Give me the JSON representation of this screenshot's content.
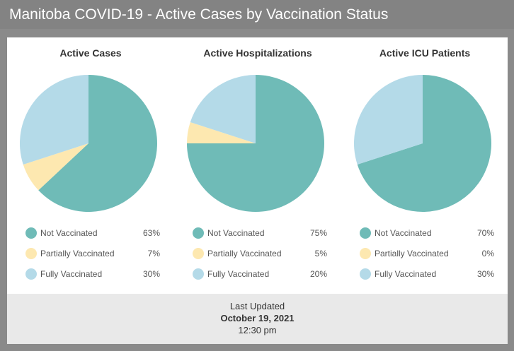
{
  "header": {
    "title": "Manitoba COVID-19 - Active Cases by Vaccination Status"
  },
  "colors": {
    "not_vaccinated": "#6fbbb7",
    "partially_vaccinated": "#fde8b0",
    "fully_vaccinated": "#b4dae8"
  },
  "chart_data": [
    {
      "type": "pie",
      "title": "Active Cases",
      "categories": [
        "Not Vaccinated",
        "Partially Vaccinated",
        "Fully Vaccinated"
      ],
      "values": [
        63,
        7,
        30
      ],
      "value_labels": [
        "63%",
        "7%",
        "30%"
      ]
    },
    {
      "type": "pie",
      "title": "Active Hospitalizations",
      "categories": [
        "Not Vaccinated",
        "Partially Vaccinated",
        "Fully Vaccinated"
      ],
      "values": [
        75,
        5,
        20
      ],
      "value_labels": [
        "75%",
        "5%",
        "20%"
      ]
    },
    {
      "type": "pie",
      "title": "Active ICU Patients",
      "categories": [
        "Not Vaccinated",
        "Partially Vaccinated",
        "Fully Vaccinated"
      ],
      "values": [
        70,
        0,
        30
      ],
      "value_labels": [
        "70%",
        "0%",
        "30%"
      ]
    }
  ],
  "footer": {
    "label": "Last Updated",
    "date": "October 19, 2021",
    "time": "12:30 pm"
  }
}
